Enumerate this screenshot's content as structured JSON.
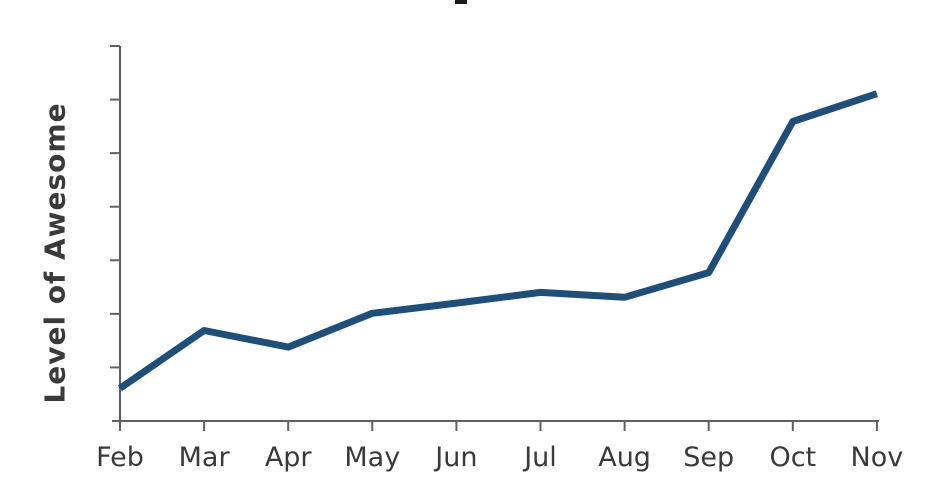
{
  "chart_data": {
    "type": "line",
    "title": "",
    "xlabel": "",
    "ylabel": "Level of Awesome",
    "categories": [
      "Feb",
      "Mar",
      "Apr",
      "May",
      "Jun",
      "Jul",
      "Aug",
      "Sep",
      "Oct",
      "Nov"
    ],
    "series": [
      {
        "name": "Level of Awesome",
        "values": [
          0.61,
          1.69,
          1.38,
          2.01,
          2.2,
          2.4,
          2.31,
          2.77,
          5.59,
          6.11
        ]
      }
    ],
    "ylim": [
      0,
      7
    ],
    "yticks": [
      1,
      2,
      3,
      4,
      5,
      6,
      7
    ],
    "ytick_labels_visible": false,
    "grid": false,
    "legend_position": "none",
    "style": "hand-drawn-comic",
    "colors": {
      "line": "#1f4e79",
      "axis": "#606060",
      "text": "#3a3a3a",
      "background": "#ffffff",
      "title_fragment": "#1a1a1a"
    }
  }
}
